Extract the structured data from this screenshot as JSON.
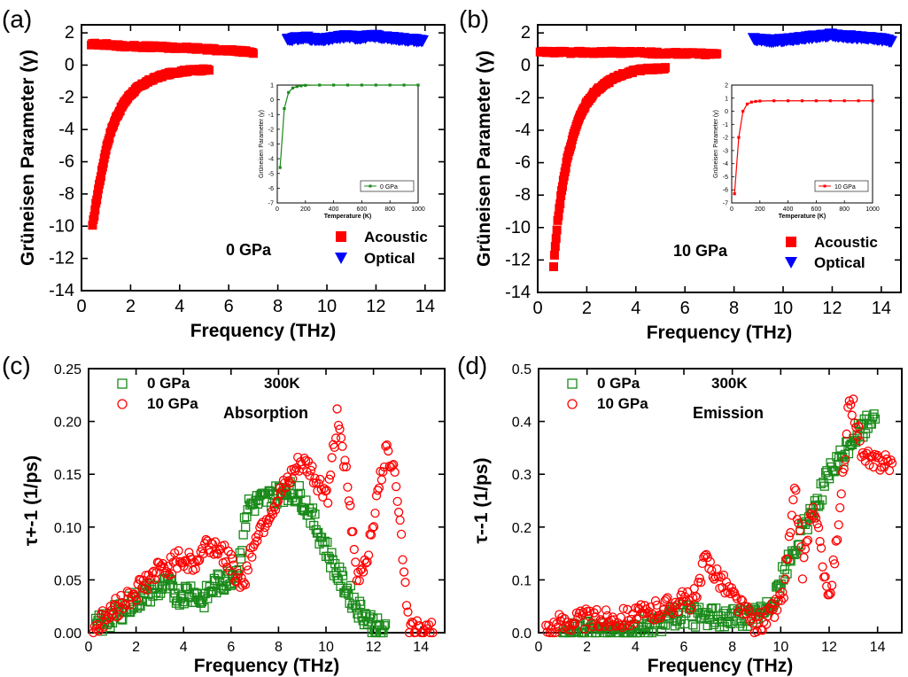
{
  "colors": {
    "acoustic": "#ff0000",
    "optical": "#0000ff",
    "p0": "#1a8a1a",
    "p10": "#ff0000"
  },
  "chart_data": [
    {
      "panel": "(a)",
      "type": "scatter",
      "xlabel": "Frequency (THz)",
      "ylabel": "Grüneisen Parameter (γ)",
      "xlim": [
        0,
        14.8
      ],
      "ylim": [
        -14,
        2.5
      ],
      "xticks": [
        "0",
        "2",
        "4",
        "6",
        "8",
        "10",
        "12",
        "14"
      ],
      "yticks": [
        "2",
        "0",
        "-2",
        "-4",
        "-6",
        "-8",
        "-10",
        "-12",
        "-14"
      ],
      "annotation": "0 GPa",
      "series": [
        {
          "name": "Acoustic",
          "marker": "square",
          "color": "#ff0000",
          "x": [
            0.45,
            0.5,
            0.6,
            0.7,
            0.8,
            0.9,
            1.0,
            1.2,
            1.4,
            1.6,
            1.8,
            2.0,
            2.3,
            2.6,
            3.0,
            3.4,
            3.8,
            4.3,
            4.8,
            5.2
          ],
          "y": [
            -10,
            -9.5,
            -8.5,
            -7.6,
            -6.8,
            -6.0,
            -5.2,
            -4.1,
            -3.3,
            -2.7,
            -2.2,
            -1.8,
            -1.4,
            -1.1,
            -0.8,
            -0.6,
            -0.45,
            -0.35,
            -0.3,
            -0.3
          ]
        },
        {
          "name": "Acoustic upper branch",
          "marker": "square",
          "color": "#ff0000",
          "legend": false,
          "x": [
            0.4,
            0.8,
            1.5,
            2.5,
            3.5,
            4.5,
            5.0,
            5.5,
            6.0,
            6.5,
            7.0
          ],
          "y": [
            1.3,
            1.3,
            1.2,
            1.15,
            1.1,
            1.05,
            1.0,
            0.95,
            0.9,
            0.85,
            0.8
          ]
        },
        {
          "name": "Optical",
          "marker": "triangle-down",
          "color": "#0000ff",
          "x": [
            8.4,
            8.8,
            9.2,
            9.6,
            10.0,
            10.4,
            10.8,
            11.2,
            11.6,
            12.0,
            12.4,
            12.8,
            13.2,
            13.6,
            13.9
          ],
          "y": [
            1.6,
            1.65,
            1.7,
            1.55,
            1.6,
            1.7,
            1.8,
            1.7,
            1.75,
            1.8,
            1.7,
            1.65,
            1.6,
            1.55,
            1.5
          ]
        }
      ],
      "inset": {
        "xlabel": "Temperature (K)",
        "ylabel": "Grüneisen Parameter (γ)",
        "xlim": [
          0,
          1000
        ],
        "ylim": [
          -7,
          1
        ],
        "xticks": [
          "0",
          "200",
          "400",
          "600",
          "800",
          "1000"
        ],
        "yticks": [
          "1",
          "0",
          "-1",
          "-2",
          "-3",
          "-4",
          "-5",
          "-6",
          "-7"
        ],
        "series": {
          "name": "0 GPa",
          "color": "#1a8a1a",
          "x": [
            20,
            50,
            80,
            110,
            140,
            170,
            200,
            300,
            400,
            500,
            600,
            700,
            800,
            900,
            1000
          ],
          "y": [
            -4.6,
            -0.6,
            0.5,
            0.8,
            0.9,
            0.95,
            0.98,
            1.0,
            1.0,
            1.0,
            1.0,
            1.0,
            1.0,
            1.0,
            1.0
          ]
        }
      }
    },
    {
      "panel": "(b)",
      "type": "scatter",
      "xlabel": "Frequency (THz)",
      "ylabel": "Grüneisen Parameter (γ)",
      "xlim": [
        0,
        14.8
      ],
      "ylim": [
        -14,
        2.5
      ],
      "xticks": [
        "0",
        "2",
        "4",
        "6",
        "8",
        "10",
        "12",
        "14"
      ],
      "yticks": [
        "2",
        "0",
        "-2",
        "-4",
        "-6",
        "-8",
        "-10",
        "-12",
        "-14"
      ],
      "annotation": "10 GPa",
      "series": [
        {
          "name": "Acoustic",
          "marker": "square",
          "color": "#ff0000",
          "x": [
            0.65,
            0.7,
            0.8,
            0.9,
            1.0,
            1.2,
            1.4,
            1.6,
            1.8,
            2.0,
            2.3,
            2.6,
            3.0,
            3.4,
            3.8,
            4.3,
            4.8,
            5.2
          ],
          "y": [
            -12.4,
            -11.4,
            -9.8,
            -8.6,
            -7.5,
            -5.8,
            -4.6,
            -3.6,
            -2.9,
            -2.3,
            -1.7,
            -1.3,
            -0.9,
            -0.6,
            -0.4,
            -0.25,
            -0.2,
            -0.2
          ]
        },
        {
          "name": "Acoustic upper branch",
          "marker": "square",
          "color": "#ff0000",
          "legend": false,
          "x": [
            0.1,
            0.5,
            1.0,
            2.0,
            3.0,
            4.0,
            5.0,
            6.0,
            7.0,
            7.3
          ],
          "y": [
            0.8,
            0.8,
            0.8,
            0.8,
            0.8,
            0.8,
            0.75,
            0.75,
            0.7,
            0.7
          ]
        },
        {
          "name": "Optical",
          "marker": "triangle-down",
          "color": "#0000ff",
          "x": [
            8.8,
            9.2,
            9.6,
            10.0,
            10.4,
            10.8,
            11.2,
            11.6,
            12.0,
            12.4,
            12.8,
            13.2,
            13.6,
            14.0,
            14.4
          ],
          "y": [
            1.6,
            1.55,
            1.5,
            1.55,
            1.6,
            1.7,
            1.75,
            1.8,
            1.9,
            1.8,
            1.75,
            1.7,
            1.65,
            1.6,
            1.5
          ]
        }
      ],
      "inset": {
        "xlabel": "Temperature (K)",
        "ylabel": "Grüneisen Parameter (γ)",
        "xlim": [
          0,
          1000
        ],
        "ylim": [
          -7,
          2
        ],
        "xticks": [
          "0",
          "200",
          "400",
          "600",
          "800",
          "1000"
        ],
        "yticks": [
          "2",
          "1",
          "0",
          "-1",
          "-2",
          "-3",
          "-4",
          "-5",
          "-6",
          "-7"
        ],
        "series": {
          "name": "10 GPa",
          "color": "#ff0000",
          "x": [
            20,
            50,
            80,
            110,
            140,
            170,
            200,
            300,
            400,
            500,
            600,
            700,
            800,
            900,
            1000
          ],
          "y": [
            -6.3,
            -2.0,
            0.0,
            0.55,
            0.7,
            0.75,
            0.78,
            0.8,
            0.8,
            0.8,
            0.8,
            0.8,
            0.8,
            0.8,
            0.8
          ]
        }
      }
    },
    {
      "panel": "(c)",
      "type": "scatter",
      "xlabel": "Frequency (THz)",
      "ylabel": "τ+-1 (1/ps)",
      "xlim": [
        0,
        15
      ],
      "ylim": [
        0,
        0.25
      ],
      "xticks": [
        "0",
        "2",
        "4",
        "6",
        "8",
        "10",
        "12",
        "14"
      ],
      "yticks": [
        "0.00",
        "0.05",
        "0.10",
        "0.15",
        "0.20",
        "0.25"
      ],
      "annotations": [
        "300K",
        "Absorption"
      ],
      "series": [
        {
          "name": "0 GPa",
          "marker": "open-square",
          "color": "#1a8a1a",
          "x": [
            0.3,
            0.8,
            1.3,
            1.8,
            2.3,
            2.8,
            3.3,
            3.8,
            4.3,
            4.8,
            5.3,
            5.8,
            6.3,
            6.7,
            8.4,
            8.9,
            9.3,
            9.7,
            10.1,
            10.5,
            10.9,
            11.3,
            11.7,
            12.1,
            12.5
          ],
          "y": [
            0.005,
            0.012,
            0.02,
            0.028,
            0.035,
            0.04,
            0.045,
            0.035,
            0.04,
            0.03,
            0.045,
            0.05,
            0.06,
            0.12,
            0.135,
            0.13,
            0.115,
            0.095,
            0.075,
            0.055,
            0.04,
            0.025,
            0.015,
            0.005,
            0.0
          ]
        },
        {
          "name": "10 GPa",
          "marker": "open-circle",
          "color": "#ff0000",
          "x": [
            0.2,
            0.6,
            1.0,
            1.5,
            2.0,
            2.5,
            3.0,
            3.5,
            4.0,
            4.5,
            5.0,
            5.5,
            6.0,
            6.5,
            7.0,
            8.9,
            9.3,
            9.7,
            10.1,
            10.5,
            10.9,
            11.3,
            11.7,
            12.1,
            12.5,
            12.9,
            13.5,
            14.0,
            14.5
          ],
          "y": [
            0.005,
            0.012,
            0.02,
            0.03,
            0.04,
            0.05,
            0.06,
            0.065,
            0.07,
            0.065,
            0.085,
            0.08,
            0.065,
            0.045,
            0.09,
            0.16,
            0.155,
            0.14,
            0.13,
            0.21,
            0.14,
            0.05,
            0.07,
            0.12,
            0.17,
            0.16,
            0.005,
            0.0,
            0.0
          ]
        }
      ]
    },
    {
      "panel": "(d)",
      "type": "scatter",
      "xlabel": "Frequency (THz)",
      "ylabel": "τ--1 (1/ps)",
      "xlim": [
        0,
        15
      ],
      "ylim": [
        0,
        0.5
      ],
      "xticks": [
        "0",
        "2",
        "4",
        "6",
        "8",
        "10",
        "12",
        "14"
      ],
      "yticks": [
        "0.0",
        "0.1",
        "0.2",
        "0.3",
        "0.4",
        "0.5"
      ],
      "annotations": [
        "300K",
        "Emission"
      ],
      "series": [
        {
          "name": "0 GPa",
          "marker": "open-square",
          "color": "#1a8a1a",
          "x": [
            1.0,
            2.0,
            3.0,
            4.0,
            5.0,
            5.5,
            6.0,
            6.5,
            8.8,
            9.4,
            10.0,
            10.5,
            11.0,
            11.5,
            12.0,
            12.5,
            13.0,
            13.5,
            13.9
          ],
          "y": [
            0.0,
            0.002,
            0.005,
            0.01,
            0.02,
            0.03,
            0.035,
            0.03,
            0.03,
            0.04,
            0.1,
            0.15,
            0.2,
            0.25,
            0.3,
            0.33,
            0.37,
            0.39,
            0.42
          ]
        },
        {
          "name": "10 GPa",
          "marker": "open-circle",
          "color": "#ff0000",
          "x": [
            0.3,
            0.8,
            1.5,
            2.5,
            3.5,
            4.5,
            5.0,
            5.5,
            6.0,
            6.5,
            6.9,
            8.9,
            9.5,
            10.1,
            10.6,
            10.9,
            11.3,
            11.7,
            12.0,
            12.4,
            12.8,
            13.0,
            13.4,
            13.8,
            14.2,
            14.6
          ],
          "y": [
            0.005,
            0.015,
            0.025,
            0.025,
            0.03,
            0.035,
            0.045,
            0.055,
            0.06,
            0.065,
            0.14,
            0.015,
            0.03,
            0.07,
            0.27,
            0.12,
            0.24,
            0.15,
            0.06,
            0.2,
            0.42,
            0.43,
            0.33,
            0.32,
            0.33,
            0.32
          ]
        }
      ]
    }
  ]
}
